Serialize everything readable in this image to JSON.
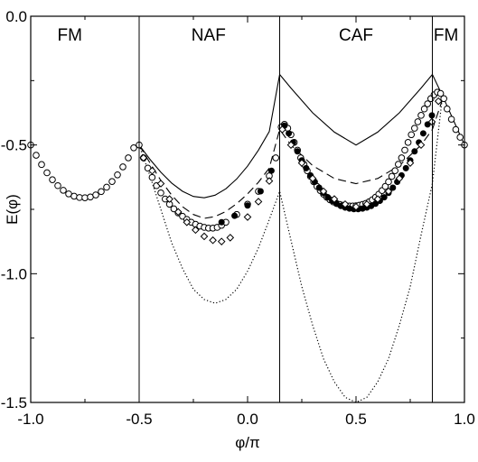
{
  "chart_data": {
    "type": "line",
    "title": "",
    "xlabel": "φ/π",
    "ylabel": "E(φ)",
    "xlim": [
      -1.0,
      1.0
    ],
    "ylim": [
      -1.5,
      0.0
    ],
    "x_ticks": [
      -1.0,
      -0.5,
      0.0,
      0.5,
      1.0
    ],
    "x_tick_labels": [
      "-1.0",
      "-0.5",
      "0.0",
      "0.5",
      "1.0"
    ],
    "y_ticks": [
      0.0,
      -0.5,
      -1.0,
      -1.5
    ],
    "y_tick_labels": [
      "0.0",
      "-0.5",
      "-1.0",
      "-1.5"
    ],
    "grid": false,
    "legend": "none",
    "phase_boundaries": [
      -0.5,
      0.148,
      0.852
    ],
    "phase_labels": [
      {
        "text": "FM",
        "x": -0.82,
        "y": -0.07
      },
      {
        "text": "NAF",
        "x": -0.18,
        "y": -0.07
      },
      {
        "text": "CAF",
        "x": 0.5,
        "y": -0.07
      },
      {
        "text": "FM",
        "x": 0.915,
        "y": -0.07
      }
    ],
    "series": [
      {
        "style": "solid",
        "x": [
          -0.5,
          -0.45,
          -0.4,
          -0.35,
          -0.3,
          -0.25,
          -0.2,
          -0.15,
          -0.1,
          -0.05,
          0.0,
          0.05,
          0.1,
          0.148,
          0.2,
          0.3,
          0.4,
          0.5,
          0.6,
          0.7,
          0.8,
          0.852,
          0.9,
          0.95,
          1.0
        ],
        "y": [
          -0.5,
          -0.556,
          -0.606,
          -0.648,
          -0.68,
          -0.7,
          -0.705,
          -0.695,
          -0.67,
          -0.632,
          -0.582,
          -0.52,
          -0.448,
          -0.226,
          -0.279,
          -0.375,
          -0.45,
          -0.5,
          -0.45,
          -0.375,
          -0.279,
          -0.226,
          -0.311,
          -0.405,
          -0.5
        ]
      },
      {
        "style": "dashed",
        "x": [
          -0.5,
          -0.45,
          -0.4,
          -0.35,
          -0.3,
          -0.25,
          -0.2,
          -0.15,
          -0.1,
          -0.05,
          0.0,
          0.05,
          0.1,
          0.148,
          0.2,
          0.3,
          0.4,
          0.5,
          0.6,
          0.7,
          0.8,
          0.852,
          0.9
        ],
        "y": [
          -0.5,
          -0.57,
          -0.638,
          -0.695,
          -0.74,
          -0.77,
          -0.785,
          -0.778,
          -0.758,
          -0.728,
          -0.69,
          -0.645,
          -0.59,
          -0.44,
          -0.5,
          -0.58,
          -0.63,
          -0.65,
          -0.63,
          -0.58,
          -0.5,
          -0.44,
          -0.32
        ]
      },
      {
        "style": "dotted",
        "x": [
          -0.5,
          -0.45,
          -0.4,
          -0.35,
          -0.3,
          -0.25,
          -0.2,
          -0.15,
          -0.1,
          -0.05,
          0.0,
          0.05,
          0.1,
          0.148,
          0.2,
          0.25,
          0.3,
          0.35,
          0.4,
          0.45,
          0.5,
          0.55,
          0.6,
          0.65,
          0.7,
          0.75,
          0.8,
          0.852,
          0.9
        ],
        "y": [
          -0.5,
          -0.62,
          -0.75,
          -0.88,
          -0.98,
          -1.06,
          -1.1,
          -1.115,
          -1.1,
          -1.06,
          -0.99,
          -0.9,
          -0.79,
          -0.68,
          -0.87,
          -1.05,
          -1.2,
          -1.33,
          -1.42,
          -1.48,
          -1.5,
          -1.48,
          -1.42,
          -1.33,
          -1.2,
          -1.05,
          -0.85,
          -0.65,
          -0.3
        ]
      },
      {
        "style": "open-circle",
        "x": [
          -1.0,
          -0.975,
          -0.95,
          -0.925,
          -0.9,
          -0.875,
          -0.85,
          -0.825,
          -0.8,
          -0.775,
          -0.75,
          -0.725,
          -0.7,
          -0.675,
          -0.65,
          -0.625,
          -0.6,
          -0.575,
          -0.55,
          -0.525,
          -0.5,
          -0.48,
          -0.46,
          -0.44,
          -0.42,
          -0.4,
          -0.38,
          -0.36,
          -0.34,
          -0.32,
          -0.3,
          -0.28,
          -0.26,
          -0.24,
          -0.22,
          -0.2,
          -0.18,
          -0.16,
          -0.14,
          -0.12,
          -0.1,
          -0.05,
          0.0,
          0.05,
          0.1,
          0.13,
          0.155,
          0.17,
          0.185,
          0.2,
          0.215,
          0.23,
          0.245,
          0.26,
          0.275,
          0.29,
          0.305,
          0.32,
          0.335,
          0.35,
          0.365,
          0.38,
          0.395,
          0.41,
          0.425,
          0.44,
          0.455,
          0.47,
          0.485,
          0.5,
          0.515,
          0.53,
          0.545,
          0.56,
          0.575,
          0.59,
          0.605,
          0.62,
          0.635,
          0.65,
          0.665,
          0.68,
          0.695,
          0.71,
          0.725,
          0.74,
          0.755,
          0.77,
          0.785,
          0.8,
          0.815,
          0.83,
          0.845,
          0.86,
          0.875,
          0.89,
          0.905,
          0.92,
          0.94,
          0.96,
          0.98,
          1.0
        ],
        "y": [
          -0.5,
          -0.54,
          -0.576,
          -0.608,
          -0.635,
          -0.658,
          -0.676,
          -0.69,
          -0.699,
          -0.704,
          -0.705,
          -0.702,
          -0.694,
          -0.681,
          -0.664,
          -0.642,
          -0.616,
          -0.585,
          -0.55,
          -0.511,
          -0.5,
          -0.55,
          -0.59,
          -0.626,
          -0.658,
          -0.686,
          -0.71,
          -0.73,
          -0.748,
          -0.764,
          -0.777,
          -0.789,
          -0.8,
          -0.808,
          -0.815,
          -0.82,
          -0.823,
          -0.823,
          -0.82,
          -0.812,
          -0.8,
          -0.77,
          -0.73,
          -0.68,
          -0.62,
          -0.55,
          -0.43,
          -0.42,
          -0.435,
          -0.46,
          -0.49,
          -0.52,
          -0.55,
          -0.575,
          -0.6,
          -0.622,
          -0.643,
          -0.661,
          -0.677,
          -0.691,
          -0.703,
          -0.713,
          -0.721,
          -0.727,
          -0.731,
          -0.734,
          -0.736,
          -0.737,
          -0.737,
          -0.736,
          -0.734,
          -0.731,
          -0.727,
          -0.721,
          -0.713,
          -0.703,
          -0.691,
          -0.677,
          -0.661,
          -0.643,
          -0.622,
          -0.6,
          -0.575,
          -0.55,
          -0.52,
          -0.49,
          -0.46,
          -0.435,
          -0.41,
          -0.385,
          -0.36,
          -0.34,
          -0.32,
          -0.305,
          -0.295,
          -0.3,
          -0.32,
          -0.36,
          -0.4,
          -0.44,
          -0.47,
          -0.5
        ]
      },
      {
        "style": "filled-circle",
        "x": [
          0.17,
          0.19,
          0.21,
          0.23,
          0.25,
          0.27,
          0.29,
          0.31,
          0.33,
          0.35,
          0.37,
          0.39,
          0.41,
          0.43,
          0.45,
          0.47,
          0.49,
          0.51,
          0.53,
          0.55,
          0.57,
          0.59,
          0.61,
          0.63,
          0.65,
          0.67,
          0.69,
          0.71,
          0.73,
          0.75,
          0.77,
          0.79,
          0.81,
          0.83,
          0.85,
          -0.12,
          -0.06,
          0.0,
          0.06,
          0.11
        ],
        "y": [
          -0.425,
          -0.455,
          -0.49,
          -0.525,
          -0.56,
          -0.59,
          -0.618,
          -0.643,
          -0.666,
          -0.686,
          -0.703,
          -0.717,
          -0.728,
          -0.737,
          -0.743,
          -0.747,
          -0.749,
          -0.749,
          -0.747,
          -0.743,
          -0.737,
          -0.728,
          -0.717,
          -0.703,
          -0.686,
          -0.666,
          -0.643,
          -0.618,
          -0.59,
          -0.56,
          -0.525,
          -0.49,
          -0.455,
          -0.42,
          -0.385,
          -0.8,
          -0.775,
          -0.735,
          -0.68,
          -0.6
        ]
      },
      {
        "style": "open-diamond",
        "x": [
          -0.48,
          -0.44,
          -0.4,
          -0.36,
          -0.32,
          -0.28,
          -0.24,
          -0.2,
          -0.16,
          -0.12,
          -0.08,
          0.0,
          0.05,
          0.1,
          0.16,
          0.2,
          0.25,
          0.3,
          0.35,
          0.4,
          0.45,
          0.5,
          0.55,
          0.6,
          0.65,
          0.7,
          0.75,
          0.8,
          0.85,
          0.88
        ],
        "y": [
          -0.55,
          -0.6,
          -0.65,
          -0.71,
          -0.76,
          -0.8,
          -0.83,
          -0.855,
          -0.87,
          -0.875,
          -0.86,
          -0.78,
          -0.72,
          -0.64,
          -0.44,
          -0.5,
          -0.57,
          -0.63,
          -0.68,
          -0.71,
          -0.73,
          -0.74,
          -0.73,
          -0.71,
          -0.68,
          -0.63,
          -0.57,
          -0.5,
          -0.41,
          -0.33
        ]
      }
    ]
  }
}
